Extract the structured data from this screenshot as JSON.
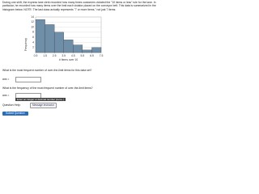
{
  "intro": "During one shift, the express lane clerk recorded how many times customers violated the \"10 items or less\" rule for the lane. In particular, he recorded how many items over the limit each violator placed on the conveyor belt. This data is summarized in the histogram below. NOTE: The last class actually represents \"7 or more items,\" not just 7 items.",
  "chart_data": {
    "type": "histogram",
    "xlabel": "# Items over 10",
    "ylabel": "Frequency",
    "bins": [
      0.5,
      1.5,
      2.5,
      3.5,
      4.5,
      5.5,
      6.5,
      7.5
    ],
    "values": [
      13,
      11,
      8,
      5,
      3,
      1,
      2
    ],
    "color": "#6f8fa8",
    "xlim": [
      0.5,
      7.5
    ],
    "ylim": [
      0,
      14
    ],
    "xticks": [
      0.5,
      1.5,
      2.5,
      3.5,
      4.5,
      5.5,
      6.5,
      7.5
    ],
    "yticks": [
      2,
      4,
      6,
      8,
      10,
      12,
      14
    ],
    "grid": true
  },
  "questions": [
    {
      "prompt": "What is the most frequent number of over-the-limit items for this data set?",
      "answer_label": "ans ="
    },
    {
      "prompt": "What is the frequency of the most frequent number of over-the-limit items?",
      "answer_label": "ans ="
    }
  ],
  "tooltip": "Enter an integer or decimal number [more..]",
  "help_label": "Question Help:",
  "help_button": "Message instructor",
  "submit": "Submit Question"
}
